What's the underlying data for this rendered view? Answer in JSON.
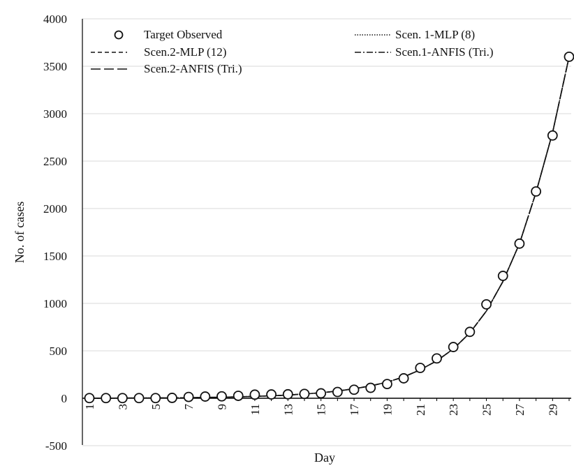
{
  "chart_data": {
    "type": "line",
    "xlabel": "Day",
    "ylabel": "No. of cases",
    "ylim": [
      -500,
      4000
    ],
    "yticks": [
      -500,
      0,
      500,
      1000,
      1500,
      2000,
      2500,
      3000,
      3500,
      4000
    ],
    "xlim": [
      1,
      30
    ],
    "xticks": [
      1,
      3,
      5,
      7,
      9,
      11,
      13,
      15,
      17,
      19,
      21,
      23,
      25,
      27,
      29
    ],
    "grid": true,
    "legend": "top",
    "x": [
      1,
      2,
      3,
      4,
      5,
      6,
      7,
      8,
      9,
      10,
      11,
      12,
      13,
      14,
      15,
      16,
      17,
      18,
      19,
      20,
      21,
      22,
      23,
      24,
      25,
      26,
      27,
      28,
      29,
      30
    ],
    "series": [
      {
        "name": "Target Observed",
        "style": "markers",
        "values": [
          2,
          2,
          2,
          2,
          2,
          4,
          14,
          18,
          20,
          26,
          38,
          40,
          42,
          46,
          52,
          66,
          90,
          110,
          150,
          210,
          320,
          420,
          540,
          700,
          990,
          1290,
          1630,
          2180,
          2770,
          3600
        ]
      },
      {
        "name": "Scen. 1-MLP (8)",
        "style": "dotted",
        "values": [
          1,
          1,
          2,
          2,
          3,
          4,
          6,
          8,
          11,
          15,
          20,
          26,
          34,
          45,
          58,
          76,
          100,
          130,
          170,
          225,
          300,
          395,
          520,
          690,
          920,
          1230,
          1630,
          2170,
          2800,
          3600
        ]
      },
      {
        "name": "Scen.2-MLP (12)",
        "style": "dashed",
        "values": [
          1,
          1,
          2,
          2,
          3,
          4,
          6,
          8,
          11,
          15,
          20,
          26,
          34,
          45,
          58,
          76,
          100,
          130,
          170,
          225,
          300,
          395,
          520,
          690,
          920,
          1230,
          1630,
          2170,
          2800,
          3600
        ]
      },
      {
        "name": "Scen.1-ANFIS (Tri.)",
        "style": "dashdot",
        "values": [
          1,
          1,
          2,
          2,
          3,
          4,
          6,
          8,
          11,
          15,
          20,
          26,
          34,
          45,
          58,
          76,
          100,
          130,
          170,
          225,
          300,
          395,
          520,
          690,
          920,
          1230,
          1630,
          2170,
          2800,
          3600
        ]
      },
      {
        "name": "Scen.2-ANFIS (Tri.)",
        "style": "longdash",
        "values": [
          1,
          1,
          2,
          2,
          3,
          4,
          6,
          8,
          11,
          15,
          20,
          26,
          34,
          45,
          58,
          76,
          100,
          130,
          170,
          225,
          300,
          395,
          520,
          690,
          920,
          1230,
          1630,
          2170,
          2800,
          3600
        ]
      }
    ]
  }
}
